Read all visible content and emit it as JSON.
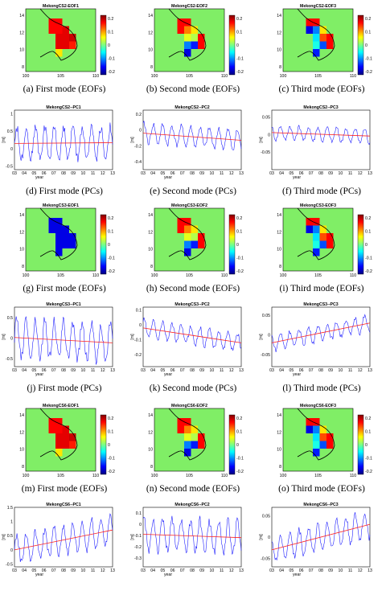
{
  "rows": [
    {
      "kind": "map",
      "panels": [
        {
          "title": "MekongCS2-EOF1",
          "caption": "(a) First mode (EOFs)",
          "pattern": "eof1_pos"
        },
        {
          "title": "MekongCS2-EOF2",
          "caption": "(b) Second mode (EOFs)",
          "pattern": "eof2"
        },
        {
          "title": "MekongCS2-EOF3",
          "caption": "(c) Third mode (EOFs)",
          "pattern": "eof3"
        }
      ]
    },
    {
      "kind": "pc",
      "panels": [
        {
          "title": "MekongCS2--PC1",
          "caption": "(d) First mode (PCs)",
          "yticks": [
            "1",
            "0.5",
            "0",
            "-0.5"
          ],
          "ylim": [
            -0.6,
            1.1
          ],
          "center": 0.15,
          "amp": 0.45,
          "trend": [
            0.15,
            0.17
          ]
        },
        {
          "title": "MekongCS2--PC2",
          "caption": "(e) Second mode (PCs)",
          "yticks": [
            "0.2",
            "0",
            "-0.2",
            "-0.4"
          ],
          "ylim": [
            -0.5,
            0.25
          ],
          "center": -0.07,
          "amp": 0.12,
          "trend": [
            -0.04,
            -0.13
          ]
        },
        {
          "title": "MekongCS2--PC3",
          "caption": "(f) Third mode (PCs)",
          "yticks": [
            "0.05",
            "0",
            "-0.05"
          ],
          "ylim": [
            -0.1,
            0.07
          ],
          "center": 0.0,
          "amp": 0.02,
          "trend": [
            0.006,
            -0.004
          ]
        }
      ]
    },
    {
      "kind": "map",
      "panels": [
        {
          "title": "MekongCS3-EOF1",
          "caption": "(g) First mode (EOFs)",
          "pattern": "eof1_neg"
        },
        {
          "title": "MekongCS3-EOF2",
          "caption": "(h) Second mode (EOFs)",
          "pattern": "eof2"
        },
        {
          "title": "MekongCS3-EOF3",
          "caption": "(i) Third mode (EOFs)",
          "pattern": "eof3"
        }
      ]
    },
    {
      "kind": "pc",
      "panels": [
        {
          "title": "MekongCS3--PC1",
          "caption": "(j) First mode (PCs)",
          "yticks": [
            "0.5",
            "0",
            "-0.5"
          ],
          "ylim": [
            -0.7,
            0.75
          ],
          "center": 0.0,
          "amp": 0.45,
          "trend": [
            0.01,
            -0.12
          ]
        },
        {
          "title": "MekongCS3--PC2",
          "caption": "(k) Second mode (PCs)",
          "yticks": [
            "0.1",
            "0",
            "-0.1",
            "-0.2"
          ],
          "ylim": [
            -0.28,
            0.12
          ],
          "center": -0.06,
          "amp": 0.06,
          "trend": [
            -0.02,
            -0.12
          ]
        },
        {
          "title": "MekongCS3--PC3",
          "caption": "(l) Third mode (PCs)",
          "yticks": [
            "0.05",
            "0",
            "-0.05"
          ],
          "ylim": [
            -0.08,
            0.07
          ],
          "center": 0.0,
          "amp": 0.02,
          "trend": [
            -0.02,
            0.03
          ]
        }
      ]
    },
    {
      "kind": "map",
      "panels": [
        {
          "title": "MekongCS6-EOF1",
          "caption": "(m) First mode (EOFs)",
          "pattern": "eof1_pos"
        },
        {
          "title": "MekongCS6-EOF2",
          "caption": "(n) Second mode (EOFs)",
          "pattern": "eof2"
        },
        {
          "title": "MekongCS6-EOF3",
          "caption": "(o) Third mode (EOFs)",
          "pattern": "eof3"
        }
      ]
    },
    {
      "kind": "pc",
      "panels": [
        {
          "title": "MekongCS6--PC1",
          "caption": "",
          "yticks": [
            "1.5",
            "1",
            "0.5",
            "0",
            "-0.5"
          ],
          "ylim": [
            -0.6,
            1.5
          ],
          "center": 0.35,
          "amp": 0.5,
          "trend": [
            0.0,
            0.7
          ]
        },
        {
          "title": "MekongCS6--PC2",
          "caption": "",
          "yticks": [
            "0.1",
            "0",
            "-0.1",
            "-0.2",
            "-0.3"
          ],
          "ylim": [
            -0.38,
            0.15
          ],
          "center": -0.1,
          "amp": 0.14,
          "trend": [
            -0.09,
            -0.12
          ]
        },
        {
          "title": "MekongCS6--PC3",
          "caption": "",
          "yticks": [
            "0.05",
            "0",
            "-0.05"
          ],
          "ylim": [
            -0.07,
            0.07
          ],
          "center": 0.0,
          "amp": 0.03,
          "trend": [
            -0.03,
            0.03
          ]
        }
      ]
    }
  ],
  "map_axes": {
    "xticks": [
      "100",
      "105",
      "110"
    ],
    "yticks": [
      "14",
      "12",
      "10",
      "8"
    ],
    "colorbar_ticks": [
      "0.2",
      "0.1",
      "0",
      "-0.1",
      "-0.2"
    ]
  },
  "pc_axes": {
    "xticks": [
      "03",
      "04",
      "05",
      "06",
      "07",
      "08",
      "09",
      "10",
      "11",
      "12",
      "13"
    ],
    "xlabel": "year",
    "ylabel": "[m]"
  },
  "colors": {
    "land": "#80ee66",
    "series": "#1010ff",
    "trend": "#ff2020",
    "coast": "#000000"
  },
  "chart_data": [
    {
      "type": "heatmap",
      "title": "MekongCS2-EOF1",
      "xlim": [
        100,
        110
      ],
      "ylim": [
        8,
        15
      ],
      "clim": [
        -0.2,
        0.2
      ]
    },
    {
      "type": "heatmap",
      "title": "MekongCS2-EOF2",
      "xlim": [
        100,
        110
      ],
      "ylim": [
        8,
        15
      ],
      "clim": [
        -0.2,
        0.2
      ]
    },
    {
      "type": "heatmap",
      "title": "MekongCS2-EOF3",
      "xlim": [
        100,
        110
      ],
      "ylim": [
        8,
        15
      ],
      "clim": [
        -0.2,
        0.2
      ]
    },
    {
      "type": "line",
      "title": "MekongCS2--PC1",
      "xlabel": "year",
      "ylabel": "[m]",
      "series": [
        {
          "values": []
        },
        {
          "values": []
        }
      ]
    },
    {
      "type": "line",
      "title": "MekongCS2--PC2",
      "xlabel": "year",
      "ylabel": "[m]",
      "series": [
        {
          "values": []
        },
        {
          "values": []
        }
      ]
    },
    {
      "type": "line",
      "title": "MekongCS2--PC3",
      "xlabel": "year",
      "ylabel": "[m]",
      "series": [
        {
          "values": []
        },
        {
          "values": []
        }
      ]
    },
    {
      "type": "heatmap",
      "title": "MekongCS3-EOF1",
      "xlim": [
        100,
        110
      ],
      "ylim": [
        8,
        15
      ],
      "clim": [
        -0.2,
        0.2
      ]
    },
    {
      "type": "heatmap",
      "title": "MekongCS3-EOF2",
      "xlim": [
        100,
        110
      ],
      "ylim": [
        8,
        15
      ],
      "clim": [
        -0.2,
        0.2
      ]
    },
    {
      "type": "heatmap",
      "title": "MekongCS3-EOF3",
      "xlim": [
        100,
        110
      ],
      "ylim": [
        8,
        15
      ],
      "clim": [
        -0.2,
        0.2
      ]
    },
    {
      "type": "line",
      "title": "MekongCS3--PC1",
      "xlabel": "year",
      "ylabel": "[m]",
      "series": [
        {
          "values": []
        },
        {
          "values": []
        }
      ]
    },
    {
      "type": "line",
      "title": "MekongCS3--PC2",
      "xlabel": "year",
      "ylabel": "[m]",
      "series": [
        {
          "values": []
        },
        {
          "values": []
        }
      ]
    },
    {
      "type": "line",
      "title": "MekongCS3--PC3",
      "xlabel": "year",
      "ylabel": "[m]",
      "series": [
        {
          "values": []
        },
        {
          "values": []
        }
      ]
    },
    {
      "type": "heatmap",
      "title": "MekongCS6-EOF1",
      "xlim": [
        100,
        110
      ],
      "ylim": [
        8,
        15
      ],
      "clim": [
        -0.2,
        0.2
      ]
    },
    {
      "type": "heatmap",
      "title": "MekongCS6-EOF2",
      "xlim": [
        100,
        110
      ],
      "ylim": [
        8,
        15
      ],
      "clim": [
        -0.2,
        0.2
      ]
    },
    {
      "type": "heatmap",
      "title": "MekongCS6-EOF3",
      "xlim": [
        100,
        110
      ],
      "ylim": [
        8,
        15
      ],
      "clim": [
        -0.2,
        0.2
      ]
    },
    {
      "type": "line",
      "title": "MekongCS6--PC1",
      "xlabel": "year",
      "ylabel": "[m]",
      "series": [
        {
          "values": []
        },
        {
          "values": []
        }
      ]
    },
    {
      "type": "line",
      "title": "MekongCS6--PC2",
      "xlabel": "year",
      "ylabel": "[m]",
      "series": [
        {
          "values": []
        },
        {
          "values": []
        }
      ]
    },
    {
      "type": "line",
      "title": "MekongCS6--PC3",
      "xlabel": "year",
      "ylabel": "[m]",
      "series": [
        {
          "values": []
        },
        {
          "values": []
        }
      ]
    }
  ]
}
